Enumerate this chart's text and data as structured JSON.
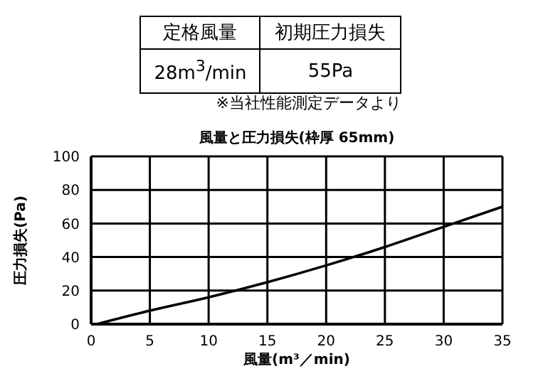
{
  "chart_data": {
    "type": "line",
    "title": "風量と圧力損失(枠厚 65mm)",
    "xlabel": "風量(m³／min)",
    "ylabel": "圧力損失(Pa)",
    "annotations": [
      "定格風量",
      "初期圧力損失",
      "28m$^{3}$/min",
      "55Pa",
      "※当社性能測定データより"
    ],
    "x": [
      0.5,
      5,
      10,
      15,
      20,
      25,
      30,
      35
    ],
    "series": [
      {
        "color": "#000000",
        "values": [
          0,
          8,
          16,
          25,
          35,
          46,
          58,
          70
        ]
      }
    ],
    "xlim": [
      0,
      35
    ],
    "xticks": [
      0,
      5,
      10,
      15,
      20,
      25,
      30,
      35
    ],
    "ylim": [
      0,
      100
    ],
    "yticks": [
      0,
      20,
      40,
      60,
      80,
      100
    ],
    "grid": true,
    "legend": false,
    "marker": "none",
    "line_style": "solid"
  }
}
